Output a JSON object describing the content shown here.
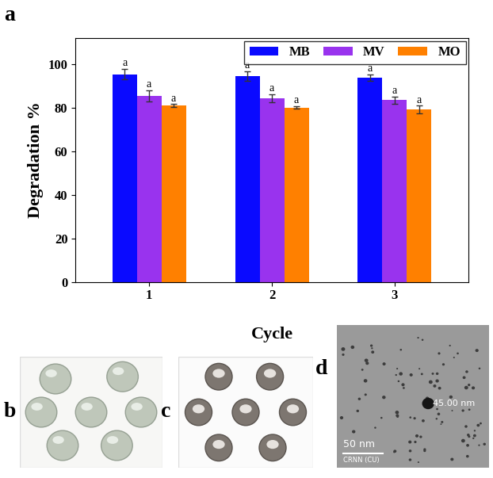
{
  "chart_data": {
    "type": "bar",
    "x_label": "Cycle",
    "y_label": "Degradation %",
    "categories": [
      "1",
      "2",
      "3"
    ],
    "series": [
      {
        "name": "MB",
        "color": "#0a0aff",
        "values": [
          95.5,
          94.5,
          94.0
        ],
        "errors": [
          2.5,
          2.2,
          1.5
        ],
        "annotations": [
          "a",
          "a",
          "a"
        ]
      },
      {
        "name": "MV",
        "color": "#9933ee",
        "values": [
          85.5,
          84.5,
          83.5
        ],
        "errors": [
          2.5,
          1.8,
          1.8
        ],
        "annotations": [
          "a",
          "a",
          "a"
        ]
      },
      {
        "name": "MO",
        "color": "#ff8000",
        "values": [
          81.0,
          80.2,
          79.2
        ],
        "errors": [
          0.7,
          0.5,
          1.8
        ],
        "annotations": [
          "a",
          "a",
          "a"
        ]
      }
    ],
    "ylim": [
      0,
      112
    ],
    "yticks": [
      0,
      20,
      40,
      60,
      80,
      100
    ],
    "legend": "upper right",
    "grid": false
  },
  "panels": [
    {
      "label": "a"
    },
    {
      "label": "b"
    },
    {
      "label": "c"
    },
    {
      "label": "d",
      "texts": [
        "45.00 nm",
        "50 nm",
        "CRNN (CU)"
      ]
    }
  ]
}
